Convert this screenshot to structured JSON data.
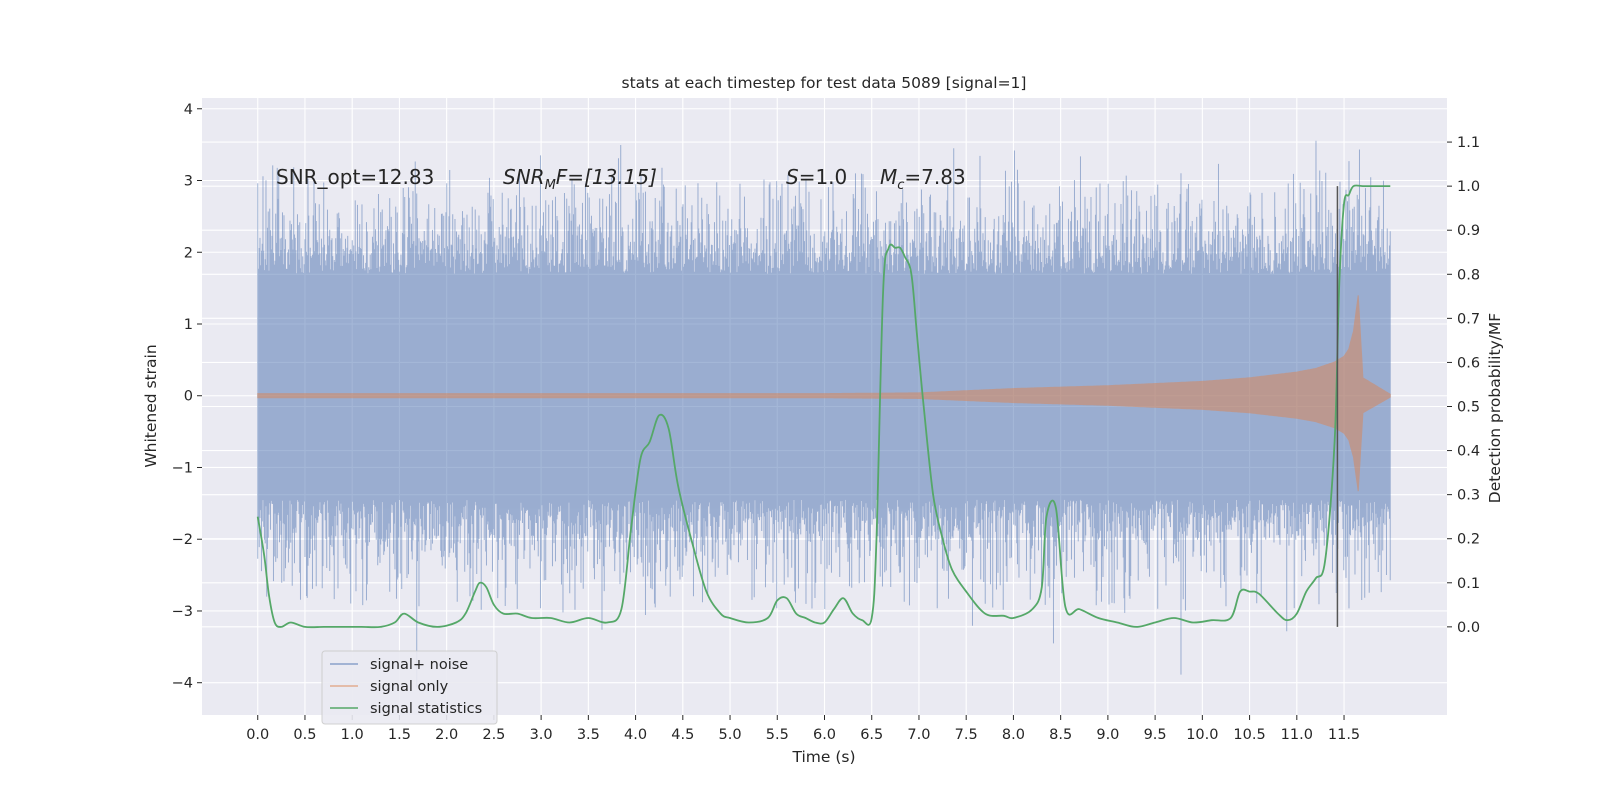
{
  "chart_data": {
    "type": "line",
    "title": "stats at each timestep for test data 5089 [signal=1]",
    "xlabel": "Time (s)",
    "ylabel_left": "Whitened strain",
    "ylabel_right": "Detection probability/MF",
    "xlim": [
      -0.59,
      12.59
    ],
    "ylim_left": [
      -4.45,
      4.15
    ],
    "ylim_right": [
      -0.2,
      1.2
    ],
    "x_ticks": [
      0.0,
      0.5,
      1.0,
      1.5,
      2.0,
      2.5,
      3.0,
      3.5,
      4.0,
      4.5,
      5.0,
      5.5,
      6.0,
      6.5,
      7.0,
      7.5,
      8.0,
      8.5,
      9.0,
      9.5,
      10.0,
      10.5,
      11.0,
      11.5
    ],
    "x_tick_labels": [
      "0.0",
      "0.5",
      "1.0",
      "1.5",
      "2.0",
      "2.5",
      "3.0",
      "3.5",
      "4.0",
      "4.5",
      "5.0",
      "5.5",
      "6.0",
      "6.5",
      "7.0",
      "7.5",
      "8.0",
      "8.5",
      "9.0",
      "9.5",
      "10.0",
      "10.5",
      "11.0",
      "11.5"
    ],
    "y_left_ticks": [
      -4,
      -3,
      -2,
      -1,
      0,
      1,
      2,
      3,
      4
    ],
    "y_left_tick_labels": [
      "−4",
      "−3",
      "−2",
      "−1",
      "0",
      "1",
      "2",
      "3",
      "4"
    ],
    "y_right_ticks": [
      0.0,
      0.1,
      0.2,
      0.3,
      0.4,
      0.5,
      0.6,
      0.7,
      0.8,
      0.9,
      1.0,
      1.1
    ],
    "y_right_tick_labels": [
      "0.0",
      "0.1",
      "0.2",
      "0.3",
      "0.4",
      "0.5",
      "0.6",
      "0.7",
      "0.8",
      "0.9",
      "1.0",
      "1.1"
    ],
    "annotations": {
      "snr_opt": "SNR_opt=12.83",
      "snr_mf_base": "SNR",
      "snr_mf_sub": "M",
      "snr_mf_tail": "F=[13.15]",
      "s_sym": "S",
      "s_val": "=1.0",
      "mc_sym": "M",
      "mc_sub": "c",
      "mc_val": "=7.83"
    },
    "legend": {
      "placement": "lower-left",
      "entries": [
        "signal+ noise",
        "signal only",
        "signal statistics"
      ]
    },
    "vertical_marker": {
      "x": 11.43,
      "y_from": -0.0,
      "y_to": 1.0,
      "color": "#555555"
    },
    "series": [
      {
        "name": "signal+ noise",
        "axis": "left",
        "color": "#4c72b0",
        "style": "noise-band",
        "x_range": [
          0.0,
          11.99
        ],
        "core_lower": -1.45,
        "core_upper": 1.7,
        "typical_peak_high": 2.6,
        "typical_peak_low": -2.4,
        "max": 3.8,
        "min": -4.1
      },
      {
        "name": "signal only",
        "axis": "left",
        "color": "#dd8452",
        "style": "chirp",
        "x": [
          0.0,
          1.0,
          2.0,
          3.0,
          4.0,
          5.0,
          6.0,
          7.0,
          7.5,
          8.0,
          8.5,
          9.0,
          9.5,
          10.0,
          10.5,
          11.0,
          11.2,
          11.4,
          11.5,
          11.55,
          11.6,
          11.65,
          11.7,
          11.99
        ],
        "amplitude": [
          0.03,
          0.03,
          0.03,
          0.03,
          0.03,
          0.03,
          0.03,
          0.04,
          0.07,
          0.1,
          0.12,
          0.14,
          0.17,
          0.2,
          0.25,
          0.33,
          0.38,
          0.47,
          0.55,
          0.65,
          0.9,
          1.4,
          0.25,
          0.02
        ]
      },
      {
        "name": "signal statistics",
        "axis": "right",
        "color": "#55a868",
        "style": "line",
        "x": [
          0.0,
          0.07,
          0.12,
          0.18,
          0.25,
          0.35,
          0.5,
          0.7,
          0.9,
          1.1,
          1.3,
          1.45,
          1.55,
          1.7,
          1.9,
          2.1,
          2.2,
          2.3,
          2.35,
          2.42,
          2.5,
          2.6,
          2.75,
          2.9,
          3.1,
          3.3,
          3.5,
          3.7,
          3.85,
          3.95,
          4.05,
          4.15,
          4.25,
          4.35,
          4.45,
          4.6,
          4.75,
          4.9,
          5.0,
          5.2,
          5.4,
          5.5,
          5.6,
          5.7,
          5.8,
          5.9,
          6.0,
          6.1,
          6.2,
          6.3,
          6.4,
          6.5,
          6.55,
          6.62,
          6.68,
          6.75,
          6.8,
          6.85,
          6.92,
          6.98,
          7.05,
          7.15,
          7.25,
          7.35,
          7.5,
          7.7,
          7.9,
          8.0,
          8.2,
          8.3,
          8.35,
          8.45,
          8.55,
          8.7,
          8.9,
          9.1,
          9.3,
          9.5,
          9.7,
          9.9,
          10.1,
          10.3,
          10.4,
          10.5,
          10.6,
          10.8,
          10.9,
          11.0,
          11.1,
          11.2,
          11.3,
          11.4,
          11.45,
          11.5,
          11.55,
          11.6,
          11.7,
          11.8,
          11.99
        ],
        "values": [
          0.25,
          0.16,
          0.07,
          0.01,
          0.0,
          0.01,
          0.0,
          0.0,
          0.0,
          0.0,
          0.0,
          0.01,
          0.03,
          0.01,
          0.0,
          0.01,
          0.03,
          0.08,
          0.1,
          0.09,
          0.05,
          0.03,
          0.03,
          0.02,
          0.02,
          0.01,
          0.02,
          0.01,
          0.04,
          0.22,
          0.38,
          0.42,
          0.48,
          0.45,
          0.32,
          0.19,
          0.08,
          0.03,
          0.02,
          0.01,
          0.02,
          0.06,
          0.065,
          0.03,
          0.02,
          0.01,
          0.01,
          0.04,
          0.065,
          0.03,
          0.015,
          0.02,
          0.2,
          0.76,
          0.86,
          0.86,
          0.86,
          0.84,
          0.8,
          0.66,
          0.5,
          0.3,
          0.2,
          0.13,
          0.08,
          0.03,
          0.025,
          0.02,
          0.04,
          0.09,
          0.25,
          0.27,
          0.045,
          0.04,
          0.02,
          0.01,
          0.0,
          0.01,
          0.02,
          0.01,
          0.015,
          0.02,
          0.08,
          0.08,
          0.075,
          0.03,
          0.015,
          0.03,
          0.08,
          0.11,
          0.15,
          0.42,
          0.78,
          0.96,
          0.98,
          1.0,
          1.0,
          1.0,
          1.0
        ]
      }
    ]
  }
}
